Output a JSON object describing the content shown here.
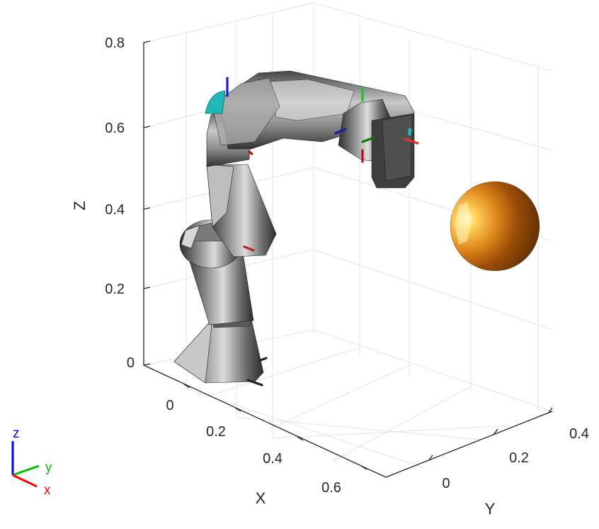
{
  "chart_data": {
    "type": "3d-scene",
    "title": "",
    "axes": {
      "x": {
        "label": "X",
        "ticks": [
          "0",
          "0.2",
          "0.4",
          "0.6"
        ]
      },
      "y": {
        "label": "Y",
        "ticks": [
          "0",
          "0.2",
          "0.4"
        ]
      },
      "z": {
        "label": "Z",
        "ticks": [
          "0",
          "0.2",
          "0.4",
          "0.6",
          "0.8"
        ],
        "lim": [
          0,
          0.8
        ]
      }
    },
    "grid": true,
    "objects": [
      {
        "name": "robot-arm",
        "color": "#5a5a5a"
      },
      {
        "name": "sphere",
        "color": "#c2721a"
      }
    ],
    "triad": {
      "x": "x",
      "y": "y",
      "z": "z",
      "x_color": "#ff0000",
      "y_color": "#00c000",
      "z_color": "#0000ff"
    }
  }
}
